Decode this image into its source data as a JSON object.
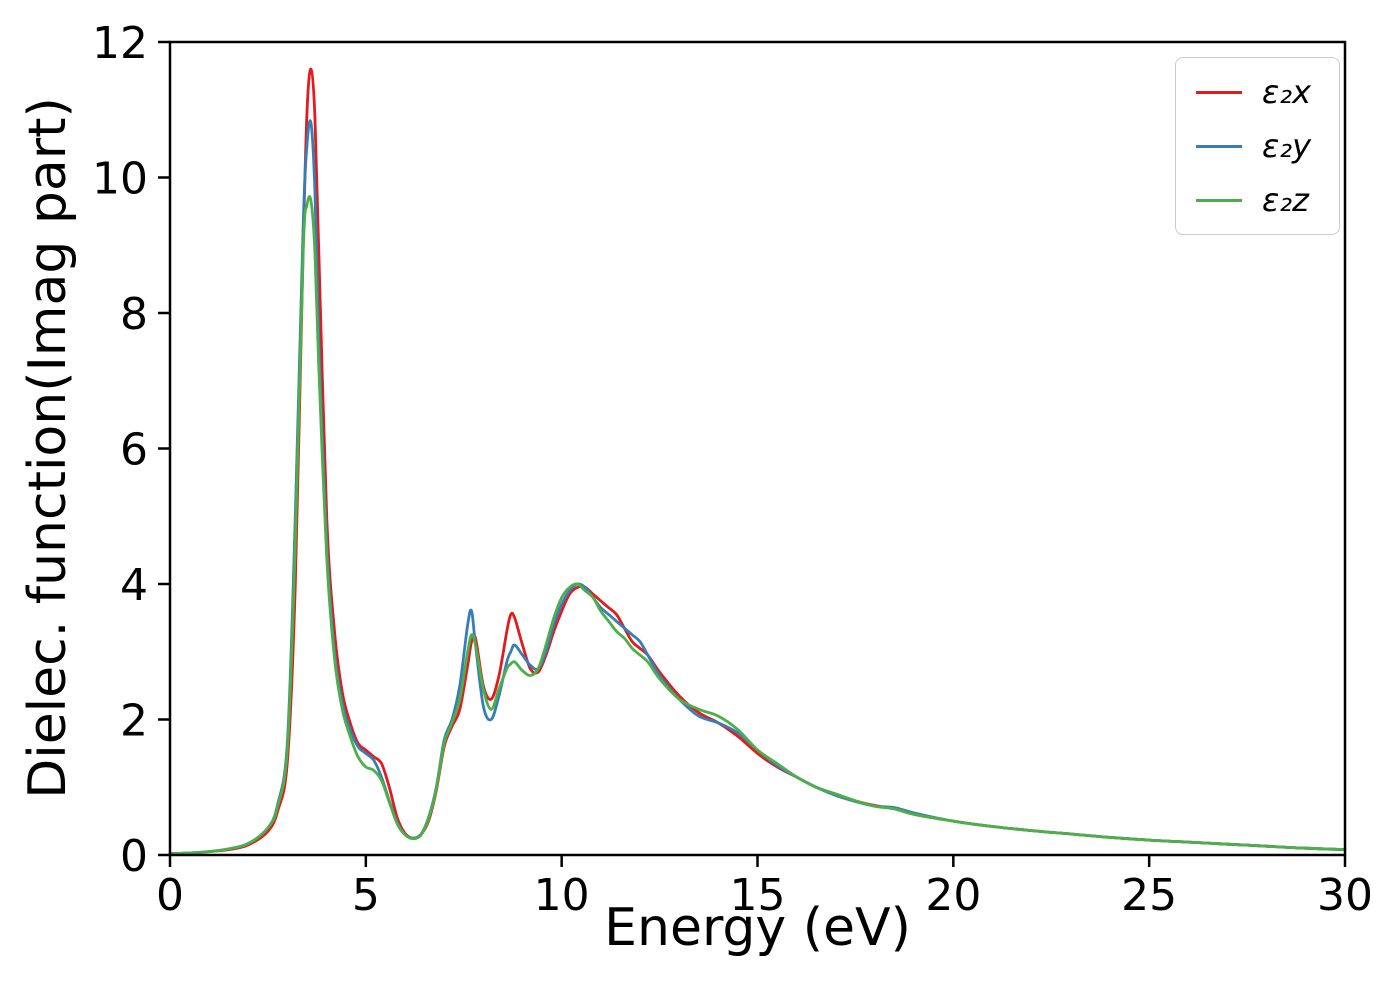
{
  "chart_data": {
    "type": "line",
    "title": "",
    "xlabel": "Energy (eV)",
    "ylabel": "Dielec. function(Imag part)",
    "xlim": [
      0,
      30
    ],
    "ylim": [
      0,
      12
    ],
    "x_ticks": [
      0,
      5,
      10,
      15,
      20,
      25,
      30
    ],
    "y_ticks": [
      0,
      2,
      4,
      6,
      8,
      10,
      12
    ],
    "grid": false,
    "legend_position": "upper right",
    "x": [
      0,
      0.5,
      1,
      1.5,
      2,
      2.5,
      2.75,
      3,
      3.2,
      3.4,
      3.5,
      3.6,
      3.7,
      3.8,
      4,
      4.2,
      4.4,
      4.6,
      4.8,
      5,
      5.2,
      5.4,
      5.6,
      5.8,
      6,
      6.2,
      6.4,
      6.6,
      6.8,
      7,
      7.2,
      7.4,
      7.6,
      7.7,
      7.8,
      8,
      8.2,
      8.4,
      8.6,
      8.7,
      8.8,
      9,
      9.2,
      9.4,
      9.6,
      9.8,
      10,
      10.2,
      10.4,
      10.6,
      10.8,
      11,
      11.2,
      11.4,
      11.6,
      11.8,
      12,
      12.2,
      12.5,
      13,
      13.5,
      14,
      14.5,
      15,
      15.5,
      16,
      16.5,
      17,
      17.5,
      18,
      18.5,
      19,
      20,
      21,
      22,
      23,
      24,
      25,
      26,
      27,
      28,
      29,
      30
    ],
    "series": [
      {
        "name": "eps2x",
        "label": "ε₂x",
        "color": "#e41a1c",
        "values": [
          0.02,
          0.03,
          0.05,
          0.08,
          0.15,
          0.35,
          0.65,
          1.4,
          4.0,
          9.0,
          11.0,
          11.6,
          10.9,
          8.9,
          5.0,
          3.3,
          2.4,
          1.95,
          1.65,
          1.55,
          1.45,
          1.35,
          1.0,
          0.55,
          0.32,
          0.25,
          0.3,
          0.5,
          0.95,
          1.6,
          1.9,
          2.15,
          2.8,
          3.15,
          3.2,
          2.5,
          2.3,
          2.65,
          3.3,
          3.55,
          3.5,
          3.1,
          2.75,
          2.7,
          2.95,
          3.3,
          3.6,
          3.85,
          3.95,
          3.95,
          3.85,
          3.75,
          3.65,
          3.55,
          3.35,
          3.15,
          3.05,
          2.95,
          2.7,
          2.35,
          2.1,
          1.95,
          1.75,
          1.5,
          1.3,
          1.15,
          1.0,
          0.9,
          0.8,
          0.73,
          0.68,
          0.6,
          0.5,
          0.42,
          0.36,
          0.31,
          0.26,
          0.22,
          0.19,
          0.16,
          0.13,
          0.1,
          0.08
        ]
      },
      {
        "name": "eps2y",
        "label": "ε₂y",
        "color": "#377eb8",
        "values": [
          0.02,
          0.03,
          0.05,
          0.09,
          0.17,
          0.4,
          0.75,
          1.7,
          5.0,
          9.3,
          10.5,
          10.8,
          9.8,
          7.6,
          4.6,
          3.0,
          2.25,
          1.85,
          1.6,
          1.5,
          1.4,
          1.15,
          0.8,
          0.48,
          0.3,
          0.25,
          0.3,
          0.55,
          1.0,
          1.7,
          2.0,
          2.5,
          3.4,
          3.6,
          3.1,
          2.2,
          2.0,
          2.35,
          2.85,
          3.0,
          3.1,
          2.95,
          2.8,
          2.75,
          3.0,
          3.4,
          3.7,
          3.9,
          4.0,
          3.95,
          3.8,
          3.65,
          3.55,
          3.45,
          3.35,
          3.25,
          3.15,
          2.95,
          2.65,
          2.3,
          2.05,
          1.95,
          1.8,
          1.55,
          1.32,
          1.15,
          1.0,
          0.88,
          0.79,
          0.72,
          0.7,
          0.62,
          0.5,
          0.42,
          0.36,
          0.31,
          0.26,
          0.22,
          0.19,
          0.16,
          0.13,
          0.1,
          0.08
        ]
      },
      {
        "name": "eps2z",
        "label": "ε₂z",
        "color": "#4daf4a",
        "values": [
          0.02,
          0.03,
          0.05,
          0.09,
          0.17,
          0.4,
          0.72,
          1.6,
          4.6,
          8.9,
          9.6,
          9.65,
          8.9,
          7.2,
          4.4,
          2.9,
          2.15,
          1.75,
          1.45,
          1.3,
          1.25,
          1.1,
          0.78,
          0.46,
          0.3,
          0.24,
          0.29,
          0.53,
          0.98,
          1.65,
          1.95,
          2.3,
          3.0,
          3.25,
          3.1,
          2.45,
          2.15,
          2.45,
          2.75,
          2.82,
          2.85,
          2.72,
          2.65,
          2.75,
          3.1,
          3.5,
          3.8,
          3.95,
          4.0,
          3.9,
          3.8,
          3.6,
          3.45,
          3.3,
          3.2,
          3.05,
          2.95,
          2.85,
          2.6,
          2.3,
          2.15,
          2.05,
          1.85,
          1.55,
          1.35,
          1.15,
          1.0,
          0.9,
          0.8,
          0.72,
          0.68,
          0.6,
          0.5,
          0.42,
          0.36,
          0.31,
          0.26,
          0.22,
          0.19,
          0.16,
          0.13,
          0.1,
          0.08
        ]
      }
    ]
  }
}
